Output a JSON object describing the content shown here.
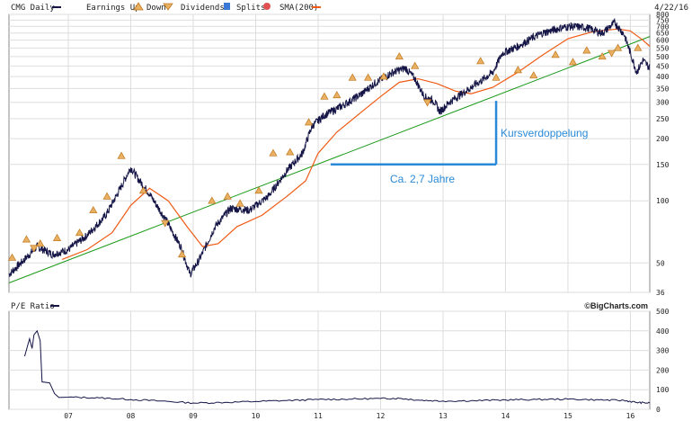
{
  "chart_data": [
    {
      "type": "line",
      "panel": "price",
      "ticker_label": "CMG Daily",
      "date_label": "4/22/16",
      "legend": {
        "earnings_up": "Earnings Up",
        "down": "Down",
        "dividends": "Dividends",
        "splits": "Splits",
        "sma": "SMA(200)"
      },
      "y_scale": "log",
      "ylim": [
        36,
        800
      ],
      "y_ticks": [
        800,
        750,
        700,
        650,
        600,
        550,
        500,
        450,
        400,
        350,
        300,
        250,
        200,
        150,
        100,
        50,
        36
      ],
      "x_ticks": [
        {
          "label": "07",
          "year": 2007.0
        },
        {
          "label": "08",
          "year": 2008.0
        },
        {
          "label": "09",
          "year": 2009.0
        },
        {
          "label": "10",
          "year": 2010.0
        },
        {
          "label": "11",
          "year": 2011.0
        },
        {
          "label": "12",
          "year": 2012.0
        },
        {
          "label": "13",
          "year": 2013.0
        },
        {
          "label": "14",
          "year": 2014.0
        },
        {
          "label": "15",
          "year": 2015.0
        },
        {
          "label": "16",
          "year": 2016.0
        }
      ],
      "xlim": [
        2006.05,
        2016.31
      ],
      "grid": true,
      "series": [
        {
          "name": "CMG Daily",
          "color": "#141446",
          "points": [
            [
              2006.05,
              44
            ],
            [
              2006.3,
              52
            ],
            [
              2006.5,
              60
            ],
            [
              2006.75,
              55
            ],
            [
              2007.0,
              58
            ],
            [
              2007.3,
              68
            ],
            [
              2007.6,
              85
            ],
            [
              2007.8,
              110
            ],
            [
              2008.0,
              145
            ],
            [
              2008.1,
              130
            ],
            [
              2008.3,
              108
            ],
            [
              2008.55,
              82
            ],
            [
              2008.8,
              60
            ],
            [
              2008.95,
              44
            ],
            [
              2009.1,
              52
            ],
            [
              2009.35,
              75
            ],
            [
              2009.6,
              92
            ],
            [
              2009.9,
              90
            ],
            [
              2010.2,
              105
            ],
            [
              2010.5,
              140
            ],
            [
              2010.75,
              170
            ],
            [
              2010.9,
              230
            ],
            [
              2011.1,
              260
            ],
            [
              2011.4,
              290
            ],
            [
              2011.7,
              330
            ],
            [
              2011.9,
              370
            ],
            [
              2012.2,
              420
            ],
            [
              2012.4,
              440
            ],
            [
              2012.55,
              390
            ],
            [
              2012.7,
              320
            ],
            [
              2012.85,
              305
            ],
            [
              2012.95,
              270
            ],
            [
              2013.1,
              300
            ],
            [
              2013.3,
              330
            ],
            [
              2013.6,
              380
            ],
            [
              2013.8,
              420
            ],
            [
              2013.95,
              520
            ],
            [
              2014.2,
              560
            ],
            [
              2014.45,
              620
            ],
            [
              2014.6,
              650
            ],
            [
              2014.9,
              690
            ],
            [
              2015.05,
              700
            ],
            [
              2015.3,
              690
            ],
            [
              2015.55,
              650
            ],
            [
              2015.75,
              730
            ],
            [
              2015.9,
              640
            ],
            [
              2016.0,
              520
            ],
            [
              2016.1,
              420
            ],
            [
              2016.2,
              480
            ],
            [
              2016.31,
              440
            ]
          ]
        },
        {
          "name": "SMA(200)",
          "color": "#f05a14",
          "points": [
            [
              2006.9,
              52
            ],
            [
              2007.3,
              58
            ],
            [
              2007.7,
              70
            ],
            [
              2008.0,
              95
            ],
            [
              2008.3,
              115
            ],
            [
              2008.6,
              100
            ],
            [
              2008.9,
              75
            ],
            [
              2009.15,
              60
            ],
            [
              2009.4,
              62
            ],
            [
              2009.7,
              75
            ],
            [
              2010.1,
              85
            ],
            [
              2010.5,
              105
            ],
            [
              2010.8,
              125
            ],
            [
              2011.0,
              170
            ],
            [
              2011.3,
              215
            ],
            [
              2011.7,
              270
            ],
            [
              2012.0,
              320
            ],
            [
              2012.3,
              375
            ],
            [
              2012.6,
              390
            ],
            [
              2012.9,
              370
            ],
            [
              2013.2,
              340
            ],
            [
              2013.45,
              330
            ],
            [
              2013.8,
              355
            ],
            [
              2014.2,
              420
            ],
            [
              2014.6,
              510
            ],
            [
              2015.0,
              610
            ],
            [
              2015.4,
              660
            ],
            [
              2015.8,
              680
            ],
            [
              2016.0,
              665
            ],
            [
              2016.2,
              600
            ],
            [
              2016.31,
              560
            ]
          ]
        },
        {
          "name": "",
          "color": "#1a9a1a",
          "points": [
            [
              2006.05,
              40
            ],
            [
              2016.31,
              625
            ]
          ]
        }
      ],
      "earnings_up_markers": [
        {
          "x": 2006.1,
          "y": 53
        },
        {
          "x": 2006.33,
          "y": 65
        },
        {
          "x": 2006.55,
          "y": 62
        },
        {
          "x": 2006.82,
          "y": 66
        },
        {
          "x": 2007.18,
          "y": 70
        },
        {
          "x": 2007.4,
          "y": 90
        },
        {
          "x": 2007.62,
          "y": 105
        },
        {
          "x": 2007.85,
          "y": 165
        },
        {
          "x": 2008.2,
          "y": 112
        },
        {
          "x": 2008.82,
          "y": 55
        },
        {
          "x": 2009.3,
          "y": 100
        },
        {
          "x": 2009.55,
          "y": 105
        },
        {
          "x": 2009.75,
          "y": 97
        },
        {
          "x": 2010.05,
          "y": 112
        },
        {
          "x": 2010.28,
          "y": 170
        },
        {
          "x": 2010.55,
          "y": 172
        },
        {
          "x": 2010.85,
          "y": 240
        },
        {
          "x": 2011.1,
          "y": 320
        },
        {
          "x": 2011.3,
          "y": 325
        },
        {
          "x": 2011.55,
          "y": 395
        },
        {
          "x": 2011.8,
          "y": 395
        },
        {
          "x": 2012.05,
          "y": 400
        },
        {
          "x": 2012.3,
          "y": 500
        },
        {
          "x": 2012.55,
          "y": 450
        },
        {
          "x": 2013.6,
          "y": 475
        },
        {
          "x": 2013.85,
          "y": 395
        },
        {
          "x": 2014.2,
          "y": 430
        },
        {
          "x": 2014.45,
          "y": 405
        },
        {
          "x": 2014.8,
          "y": 510
        },
        {
          "x": 2015.08,
          "y": 470
        },
        {
          "x": 2015.3,
          "y": 535
        },
        {
          "x": 2015.55,
          "y": 500
        },
        {
          "x": 2015.8,
          "y": 550
        },
        {
          "x": 2016.12,
          "y": 550
        }
      ],
      "down_markers": [
        {
          "x": 2006.45,
          "y": 59
        },
        {
          "x": 2008.55,
          "y": 78
        },
        {
          "x": 2012.75,
          "y": 300
        },
        {
          "x": 2015.7,
          "y": 520
        }
      ],
      "annotations": [
        {
          "text": "Kursverdoppelung",
          "x": 2013.85,
          "y": 190
        },
        {
          "text": "Ca. 2,7 Jahre",
          "x": 2012.0,
          "y": 132
        }
      ],
      "bracket": {
        "x_start": 2011.2,
        "x_end": 2013.85,
        "y_bottom": 150,
        "y_top": 305
      }
    },
    {
      "type": "line",
      "panel": "pe_ratio",
      "title": "P/E Ratio",
      "credit": "©BigCharts.com",
      "ylim": [
        0,
        500
      ],
      "y_ticks": [
        500,
        400,
        300,
        200,
        100,
        0
      ],
      "x_ticks": [
        "07",
        "08",
        "09",
        "10",
        "11",
        "12",
        "13",
        "14",
        "15",
        "16"
      ],
      "grid": true,
      "series": [
        {
          "name": "P/E Ratio",
          "color": "#141446",
          "points": [
            [
              2006.3,
              270
            ],
            [
              2006.38,
              360
            ],
            [
              2006.42,
              310
            ],
            [
              2006.45,
              380
            ],
            [
              2006.5,
              400
            ],
            [
              2006.55,
              350
            ],
            [
              2006.58,
              140
            ],
            [
              2006.7,
              135
            ],
            [
              2006.78,
              80
            ],
            [
              2006.85,
              60
            ],
            [
              2007.0,
              62
            ],
            [
              2007.5,
              58
            ],
            [
              2008.0,
              50
            ],
            [
              2008.5,
              42
            ],
            [
              2009.0,
              32
            ],
            [
              2009.5,
              35
            ],
            [
              2010.0,
              40
            ],
            [
              2010.5,
              45
            ],
            [
              2011.0,
              50
            ],
            [
              2011.5,
              52
            ],
            [
              2012.0,
              55
            ],
            [
              2012.3,
              56
            ],
            [
              2012.6,
              47
            ],
            [
              2013.0,
              42
            ],
            [
              2013.5,
              44
            ],
            [
              2014.0,
              48
            ],
            [
              2014.5,
              50
            ],
            [
              2015.0,
              52
            ],
            [
              2015.5,
              48
            ],
            [
              2015.9,
              45
            ],
            [
              2016.1,
              35
            ],
            [
              2016.31,
              32
            ]
          ]
        }
      ]
    }
  ]
}
